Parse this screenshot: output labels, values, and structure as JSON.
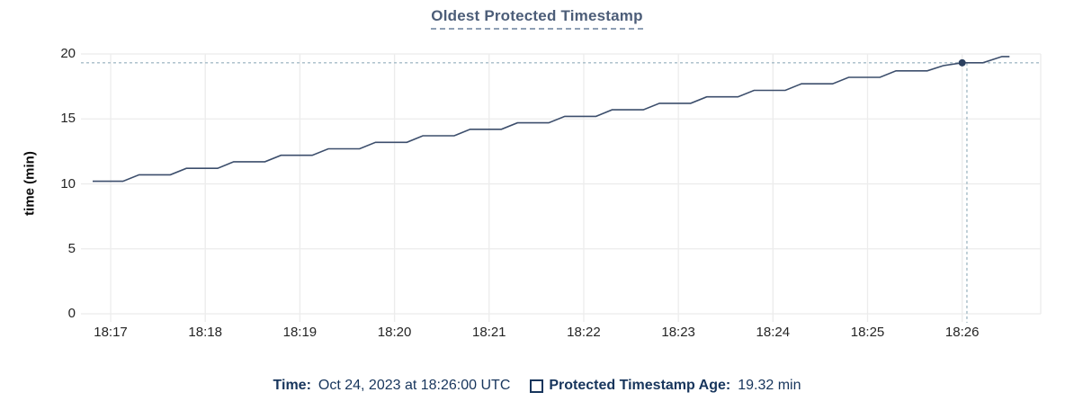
{
  "title": "Oldest Protected Timestamp",
  "y_axis_title": "time (min)",
  "footer": {
    "time_label": "Time:",
    "time_value": "Oct 24, 2023 at 18:26:00 UTC",
    "series_label": "Protected Timestamp Age:",
    "series_value": "19.32 min",
    "legend_swatch_icon": "checkbox-square"
  },
  "colors": {
    "line": "#3c4e6c",
    "marker": "#2c4160",
    "grid": "#ececec",
    "crosshair": "#a6bcc7",
    "title": "#4c5d78",
    "footer_text": "#17355c"
  },
  "chart_data": {
    "type": "line",
    "title": "Oldest Protected Timestamp",
    "xlabel": "",
    "ylabel": "time (min)",
    "grid": true,
    "legend_position": "bottom",
    "series_name": "Protected Timestamp Age",
    "unit": "min",
    "x_unit": "minutes after 18:17 UTC",
    "x_tick_offsets": [
      0,
      1,
      2,
      3,
      4,
      5,
      6,
      7,
      8,
      9
    ],
    "x_tick_labels": [
      "18:17",
      "18:18",
      "18:19",
      "18:20",
      "18:21",
      "18:22",
      "18:23",
      "18:24",
      "18:25",
      "18:26"
    ],
    "x_range": [
      -0.314,
      9.83
    ],
    "y_ticks": [
      0,
      5,
      10,
      15,
      20
    ],
    "y_tick_labels": [
      "0",
      "5",
      "10",
      "15",
      "20"
    ],
    "ylim": [
      0,
      20
    ],
    "points": [
      [
        -0.19,
        10.2
      ],
      [
        0.13,
        10.2
      ],
      [
        0.3,
        10.7
      ],
      [
        0.63,
        10.7
      ],
      [
        0.8,
        11.2
      ],
      [
        1.13,
        11.2
      ],
      [
        1.3,
        11.7
      ],
      [
        1.63,
        11.7
      ],
      [
        1.8,
        12.2
      ],
      [
        2.13,
        12.2
      ],
      [
        2.3,
        12.7
      ],
      [
        2.63,
        12.7
      ],
      [
        2.8,
        13.2
      ],
      [
        3.13,
        13.2
      ],
      [
        3.3,
        13.7
      ],
      [
        3.63,
        13.7
      ],
      [
        3.8,
        14.2
      ],
      [
        4.13,
        14.2
      ],
      [
        4.3,
        14.7
      ],
      [
        4.63,
        14.7
      ],
      [
        4.8,
        15.2
      ],
      [
        5.13,
        15.2
      ],
      [
        5.3,
        15.7
      ],
      [
        5.63,
        15.7
      ],
      [
        5.8,
        16.2
      ],
      [
        6.13,
        16.2
      ],
      [
        6.3,
        16.7
      ],
      [
        6.63,
        16.7
      ],
      [
        6.8,
        17.2
      ],
      [
        7.13,
        17.2
      ],
      [
        7.3,
        17.7
      ],
      [
        7.63,
        17.7
      ],
      [
        7.8,
        18.2
      ],
      [
        8.13,
        18.2
      ],
      [
        8.3,
        18.7
      ],
      [
        8.63,
        18.7
      ],
      [
        8.8,
        19.1
      ],
      [
        9.0,
        19.32
      ],
      [
        9.22,
        19.32
      ],
      [
        9.42,
        19.8
      ],
      [
        9.5,
        19.8
      ]
    ],
    "hover": {
      "time": "18:26:00",
      "x_offset": 9.0,
      "value": 19.32,
      "crosshair_x_offset": 9.05
    }
  }
}
